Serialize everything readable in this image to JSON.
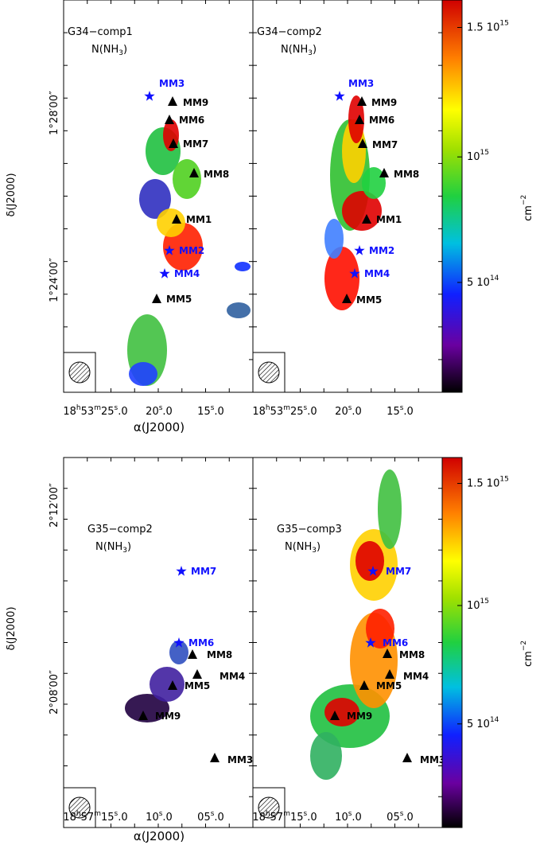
{
  "figures": [
    {
      "panels": [
        {
          "title": "G34−comp1",
          "species": [
            "N(NH",
            "3",
            ")"
          ],
          "markers": [
            {
              "label": "MM3",
              "kind": "star"
            },
            {
              "label": "MM9",
              "kind": "tri"
            },
            {
              "label": "MM6",
              "kind": "tri"
            },
            {
              "label": "MM7",
              "kind": "tri"
            },
            {
              "label": "MM8",
              "kind": "tri"
            },
            {
              "label": "MM1",
              "kind": "tri"
            },
            {
              "label": "MM2",
              "kind": "star"
            },
            {
              "label": "MM4",
              "kind": "star"
            },
            {
              "label": "MM5",
              "kind": "tri"
            }
          ]
        },
        {
          "title": "G34−comp2",
          "species": [
            "N(NH",
            "3",
            ")"
          ],
          "markers": [
            {
              "label": "MM3",
              "kind": "star"
            },
            {
              "label": "MM9",
              "kind": "tri"
            },
            {
              "label": "MM6",
              "kind": "tri"
            },
            {
              "label": "MM7",
              "kind": "tri"
            },
            {
              "label": "MM8",
              "kind": "tri"
            },
            {
              "label": "MM1",
              "kind": "tri"
            },
            {
              "label": "MM2",
              "kind": "star"
            },
            {
              "label": "MM4",
              "kind": "star"
            },
            {
              "label": "MM5",
              "kind": "tri"
            }
          ]
        }
      ],
      "yticks": [
        "1°28′00″",
        "1°24′00″"
      ],
      "xticks": [
        [
          "18",
          "h",
          "53",
          "m",
          "25",
          "s",
          ".0"
        ],
        [
          "20",
          "s",
          ".0"
        ],
        [
          "15",
          "s",
          ".0"
        ]
      ],
      "xlabel": "α(J2000)",
      "ylabel": "δ(J2000)",
      "colorbar": {
        "ticks": [
          [
            "1.5 10",
            "15"
          ],
          [
            "10",
            "15"
          ],
          [
            "5 10",
            "14"
          ]
        ],
        "unit": [
          "cm",
          "−2"
        ]
      }
    },
    {
      "panels": [
        {
          "title": "G35−comp2",
          "species": [
            "N(NH",
            "3",
            ")"
          ],
          "markers": [
            {
              "label": "MM7",
              "kind": "star"
            },
            {
              "label": "MM6",
              "kind": "star"
            },
            {
              "label": "MM8",
              "kind": "tri"
            },
            {
              "label": "MM4",
              "kind": "tri"
            },
            {
              "label": "MM5",
              "kind": "tri"
            },
            {
              "label": "MM9",
              "kind": "tri"
            },
            {
              "label": "MM3",
              "kind": "tri"
            }
          ]
        },
        {
          "title": "G35−comp3",
          "species": [
            "N(NH",
            "3",
            ")"
          ],
          "markers": [
            {
              "label": "MM7",
              "kind": "star"
            },
            {
              "label": "MM6",
              "kind": "star"
            },
            {
              "label": "MM8",
              "kind": "tri"
            },
            {
              "label": "MM4",
              "kind": "tri"
            },
            {
              "label": "MM5",
              "kind": "tri"
            },
            {
              "label": "MM9",
              "kind": "tri"
            },
            {
              "label": "MM3",
              "kind": "tri"
            }
          ]
        }
      ],
      "yticks": [
        "2°12′00″",
        "2°08′00″"
      ],
      "xticks": [
        [
          "18",
          "h",
          "57",
          "m",
          "15",
          "s",
          ".0"
        ],
        [
          "10",
          "s",
          ".0"
        ],
        [
          "05",
          "s",
          ".0"
        ]
      ],
      "xlabel": "α(J2000)",
      "ylabel": "δ(J2000)",
      "colorbar": {
        "ticks": [
          [
            "1.5 10",
            "15"
          ],
          [
            "10",
            "15"
          ],
          [
            "5 10",
            "14"
          ]
        ],
        "unit": [
          "cm",
          "−2"
        ]
      }
    }
  ]
}
